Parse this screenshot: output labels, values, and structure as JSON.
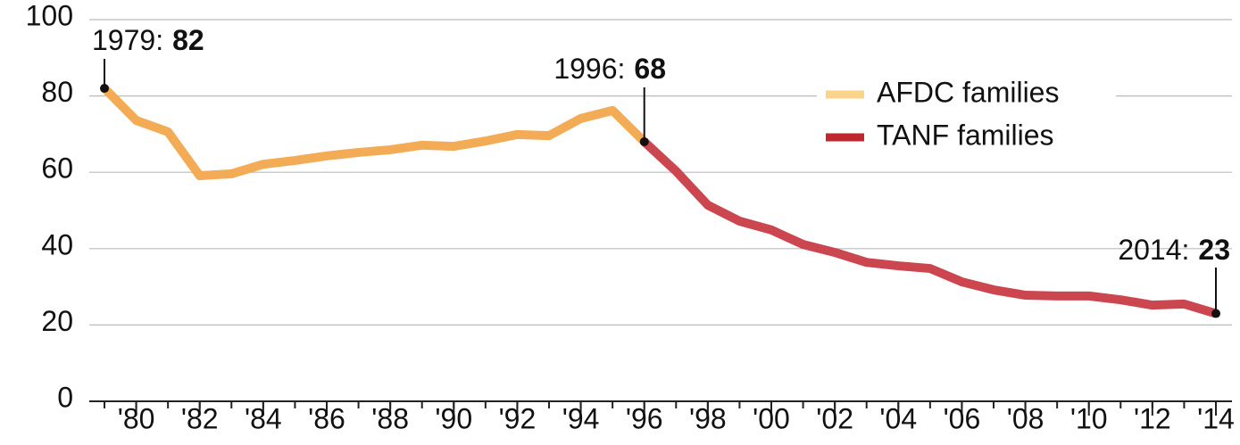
{
  "chart_data": {
    "type": "line",
    "x": [
      1979,
      1980,
      1981,
      1982,
      1983,
      1984,
      1985,
      1986,
      1987,
      1988,
      1989,
      1990,
      1991,
      1992,
      1993,
      1994,
      1995,
      1996,
      1997,
      1998,
      1999,
      2000,
      2001,
      2002,
      2003,
      2004,
      2005,
      2006,
      2007,
      2008,
      2009,
      2010,
      2011,
      2012,
      2013,
      2014
    ],
    "series": [
      {
        "name": "AFDC families",
        "color": "#f3ab55",
        "legend_color": "#fbd489",
        "values": [
          82,
          73.6,
          70.6,
          59.1,
          59.6,
          62.1,
          63.1,
          64.3,
          65.2,
          65.9,
          67.1,
          66.8,
          68.2,
          69.9,
          69.6,
          74.1,
          76.2,
          68,
          null,
          null,
          null,
          null,
          null,
          null,
          null,
          null,
          null,
          null,
          null,
          null,
          null,
          null,
          null,
          null,
          null,
          null
        ]
      },
      {
        "name": "TANF families",
        "color": "#cc4650",
        "legend_color": "#c0262e",
        "values": [
          null,
          null,
          null,
          null,
          null,
          null,
          null,
          null,
          null,
          null,
          null,
          null,
          null,
          null,
          null,
          null,
          null,
          68,
          60.3,
          51.4,
          47.2,
          44.9,
          41.1,
          39.0,
          36.4,
          35.5,
          34.8,
          31.3,
          29.2,
          27.8,
          27.6,
          27.6,
          26.6,
          25.2,
          25.5,
          23
        ]
      }
    ],
    "xlim": [
      1979,
      2014
    ],
    "xticks": [
      {
        "value": 1980,
        "label": "'80"
      },
      {
        "value": 1982,
        "label": "'82"
      },
      {
        "value": 1984,
        "label": "'84"
      },
      {
        "value": 1986,
        "label": "'86"
      },
      {
        "value": 1988,
        "label": "'88"
      },
      {
        "value": 1990,
        "label": "'90"
      },
      {
        "value": 1992,
        "label": "'92"
      },
      {
        "value": 1994,
        "label": "'94"
      },
      {
        "value": 1996,
        "label": "'96"
      },
      {
        "value": 1998,
        "label": "'98"
      },
      {
        "value": 2000,
        "label": "'00"
      },
      {
        "value": 2002,
        "label": "'02"
      },
      {
        "value": 2004,
        "label": "'04"
      },
      {
        "value": 2006,
        "label": "'06"
      },
      {
        "value": 2008,
        "label": "'08"
      },
      {
        "value": 2010,
        "label": "'10"
      },
      {
        "value": 2012,
        "label": "'12"
      },
      {
        "value": 2014,
        "label": "'14"
      }
    ],
    "ylim": [
      0,
      100
    ],
    "yticks": [
      0,
      20,
      40,
      60,
      80,
      100
    ],
    "grid": true,
    "legend": "upper right",
    "annotations": [
      {
        "text": "1979:"
      },
      {
        "text": "1996:"
      },
      {
        "text": "2014:"
      }
    ]
  }
}
